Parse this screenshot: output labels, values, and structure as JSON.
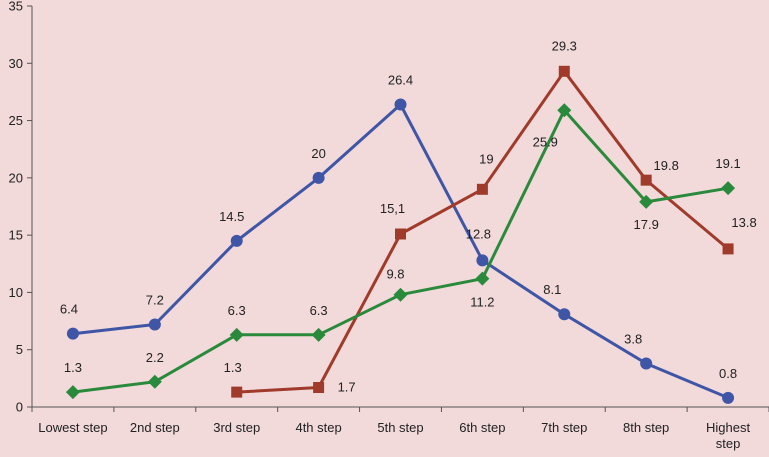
{
  "chart_data": {
    "type": "line",
    "categories": [
      "Lowest step",
      "2nd step",
      "3rd step",
      "4th step",
      "5th step",
      "6th step",
      "7th step",
      "8th step",
      "Highest step"
    ],
    "ylim": [
      0,
      35
    ],
    "yticks": [
      0,
      5,
      10,
      15,
      20,
      25,
      30,
      35
    ],
    "grid": false,
    "legend": "none",
    "series": [
      {
        "color": "#3f55a5",
        "marker": "circle",
        "values": [
          6.4,
          7.2,
          14.5,
          20,
          26.4,
          12.8,
          8.1,
          3.8,
          0.8
        ],
        "labels": [
          "6.4",
          "7.2",
          "14.5",
          "20",
          "26.4",
          "12.8",
          "8.1",
          "3.8",
          "0.8"
        ]
      },
      {
        "color": "#a03a2a",
        "marker": "square",
        "values": [
          null,
          null,
          1.3,
          1.7,
          15.1,
          19,
          29.3,
          19.8,
          13.8
        ],
        "labels": [
          null,
          null,
          "1.3",
          "1.7",
          "15,1",
          "19",
          "29.3",
          "19.8",
          "13.8"
        ]
      },
      {
        "color": "#2a8a3c",
        "marker": "diamond",
        "values": [
          1.3,
          2.2,
          6.3,
          6.3,
          9.8,
          11.2,
          25.9,
          17.9,
          19.1
        ],
        "labels": [
          "1.3",
          "2.2",
          "6.3",
          "6.3",
          "9.8",
          "11.2",
          "25.9",
          "17.9",
          "19.1"
        ]
      }
    ]
  }
}
